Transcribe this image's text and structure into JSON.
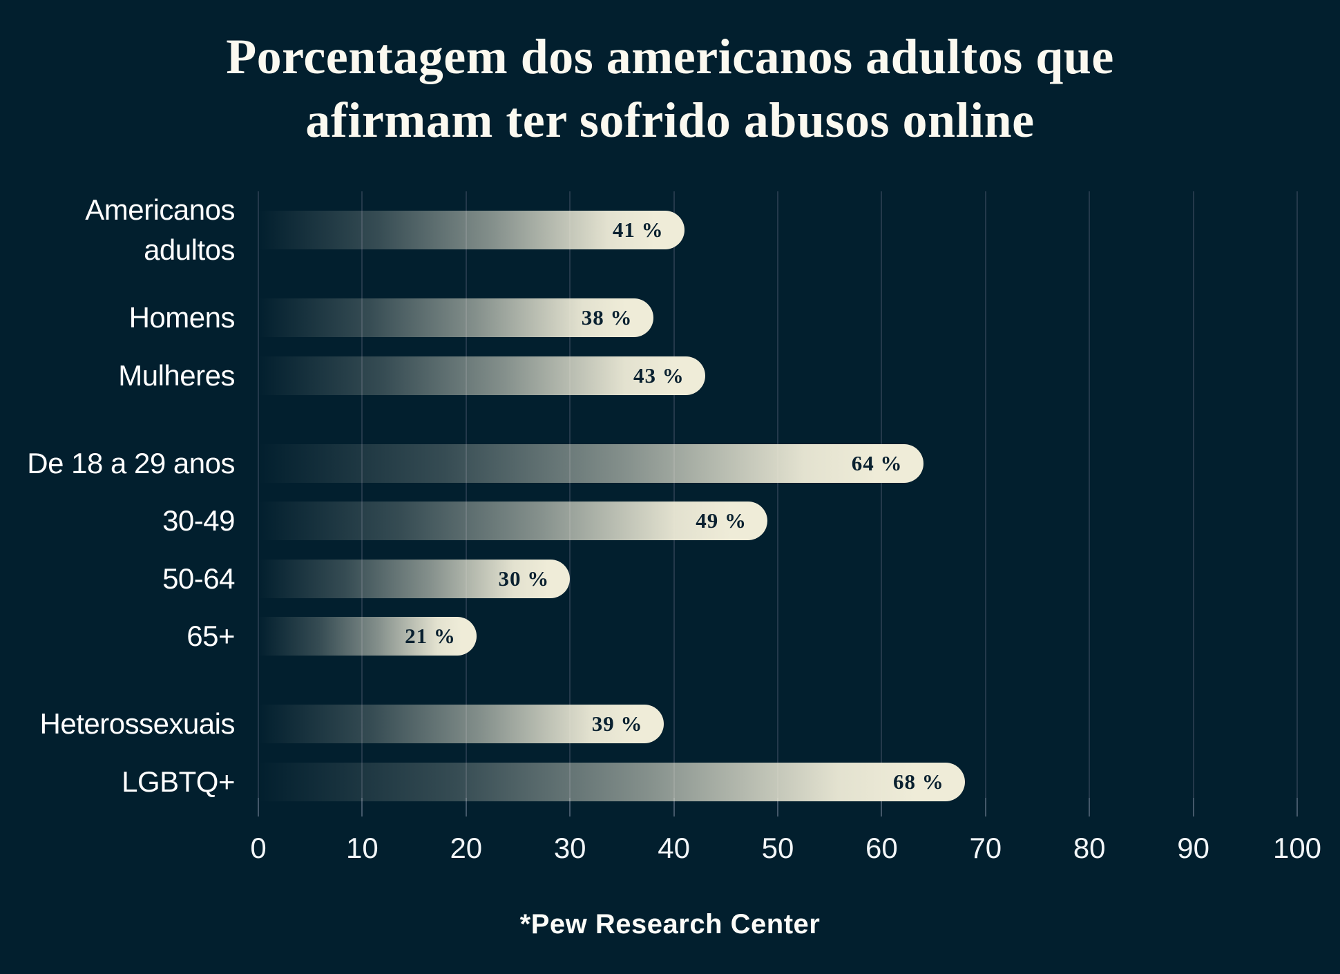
{
  "title": {
    "line1": "Porcentagem dos americanos adultos que",
    "line2": "afirmam ter sofrido abusos online"
  },
  "source": "*Pew Research Center",
  "colors": {
    "background": "#021F2E",
    "bar_cream": "#EFECD8",
    "gridline": "#24394B",
    "tickmark": "#44586A",
    "value_text": "#0A2130",
    "label_text": "#FFFFFF"
  },
  "chart_data": {
    "type": "bar",
    "orientation": "horizontal",
    "title": "Porcentagem dos americanos adultos que afirmam ter sofrido abusos online",
    "xlabel": "",
    "ylabel": "",
    "xlim": [
      0,
      100
    ],
    "xticks": [
      0,
      10,
      20,
      30,
      40,
      50,
      60,
      70,
      80,
      90,
      100
    ],
    "grid": true,
    "legend": false,
    "source": "*Pew Research Center",
    "categories": [
      "Americanos adultos",
      "Homens",
      "Mulheres",
      "De 18 a 29 anos",
      "30-49",
      "50-64",
      "65+",
      "Heterossexuais",
      "LGBTQ+"
    ],
    "values": [
      41,
      38,
      43,
      64,
      49,
      30,
      21,
      39,
      68
    ],
    "value_labels": [
      "41 %",
      "38 %",
      "43 %",
      "64 %",
      "49 %",
      "30 %",
      "21 %",
      "39 %",
      "68 %"
    ],
    "label_line_overrides": {
      "0": [
        "Americanos",
        "adultos"
      ]
    },
    "groups": [
      [
        0
      ],
      [
        1,
        2
      ],
      [
        3,
        4,
        5,
        6
      ],
      [
        7,
        8
      ]
    ]
  }
}
